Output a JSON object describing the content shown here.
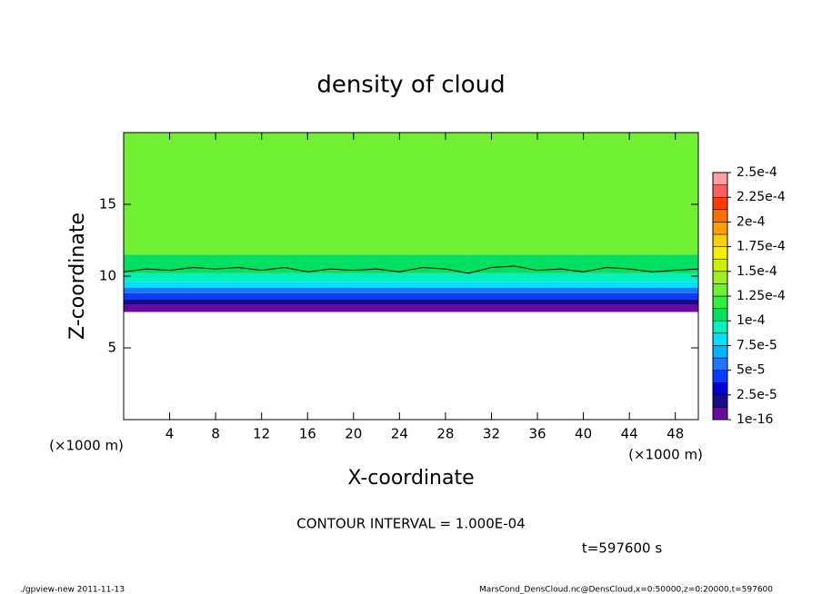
{
  "chart_data": {
    "type": "contour",
    "title": "density of cloud",
    "x_label": "X-coordinate",
    "y_label": "Z-coordinate",
    "x_unit": "(×1000 m)",
    "xlim": [
      0,
      50
    ],
    "xticks": [
      4,
      8,
      12,
      16,
      20,
      24,
      28,
      32,
      36,
      40,
      44,
      48
    ],
    "ylim": [
      0,
      20
    ],
    "yticks": [
      5,
      10,
      15
    ],
    "z_bins": [
      7.5,
      8.0,
      8.4,
      8.8,
      9.2,
      9.6,
      10.2,
      11.5,
      20
    ],
    "values": [
      5e-06,
      2e-05,
      4e-05,
      6e-05,
      8e-05,
      9.5e-05,
      0.00011,
      0.000126
    ],
    "colorbar_ticks": [
      1e-16,
      {
        "value": 2.5e-05,
        "label": "2.5e-5"
      },
      {
        "value": 5e-05,
        "label": "5e-5"
      },
      {
        "value": 7.5e-05,
        "label": "7.5e-5"
      },
      {
        "value": 0.0001,
        "label": "1e-4"
      },
      {
        "value": 0.000125,
        "label": "1.25e-4"
      },
      {
        "value": 0.00015,
        "label": "1.5e-4"
      },
      {
        "value": 0.000175,
        "label": "1.75e-4"
      },
      {
        "value": 0.0002,
        "label": "2e-4"
      },
      {
        "value": 0.000225,
        "label": "2.25e-4"
      },
      {
        "value": 0.00025,
        "label": "2.5e-4"
      }
    ],
    "colors": [
      "#6a0aa0",
      "#1a0a8c",
      "#0000d0",
      "#0a3cff",
      "#1e78ff",
      "#00b4ff",
      "#00e0ff",
      "#00f0c0",
      "#00e060",
      "#30f040",
      "#70f030",
      "#a0f020",
      "#c8f000",
      "#f0f000",
      "#ffd000",
      "#ffa000",
      "#ff7000",
      "#ff3c00",
      "#ff6060",
      "#ffa0a0"
    ],
    "contour": {
      "x": [
        0,
        2,
        4,
        6,
        8,
        10,
        12,
        14,
        16,
        18,
        20,
        22,
        24,
        26,
        28,
        30,
        32,
        34,
        36,
        38,
        40,
        42,
        44,
        46,
        48,
        50
      ],
      "z": [
        10.3,
        10.5,
        10.4,
        10.6,
        10.5,
        10.6,
        10.4,
        10.6,
        10.3,
        10.5,
        10.4,
        10.5,
        10.3,
        10.6,
        10.5,
        10.2,
        10.6,
        10.7,
        10.4,
        10.5,
        10.3,
        10.6,
        10.5,
        10.3,
        10.4,
        10.5
      ]
    },
    "contour_interval": "CONTOUR INTERVAL = 1.000E-04",
    "time_label": "t=597600 s",
    "footer_left": "./gpview-new   2011-11-13",
    "footer_right": "MarsCond_DensCloud.nc@DensCloud,x=0:50000,z=0:20000,t=597600"
  }
}
